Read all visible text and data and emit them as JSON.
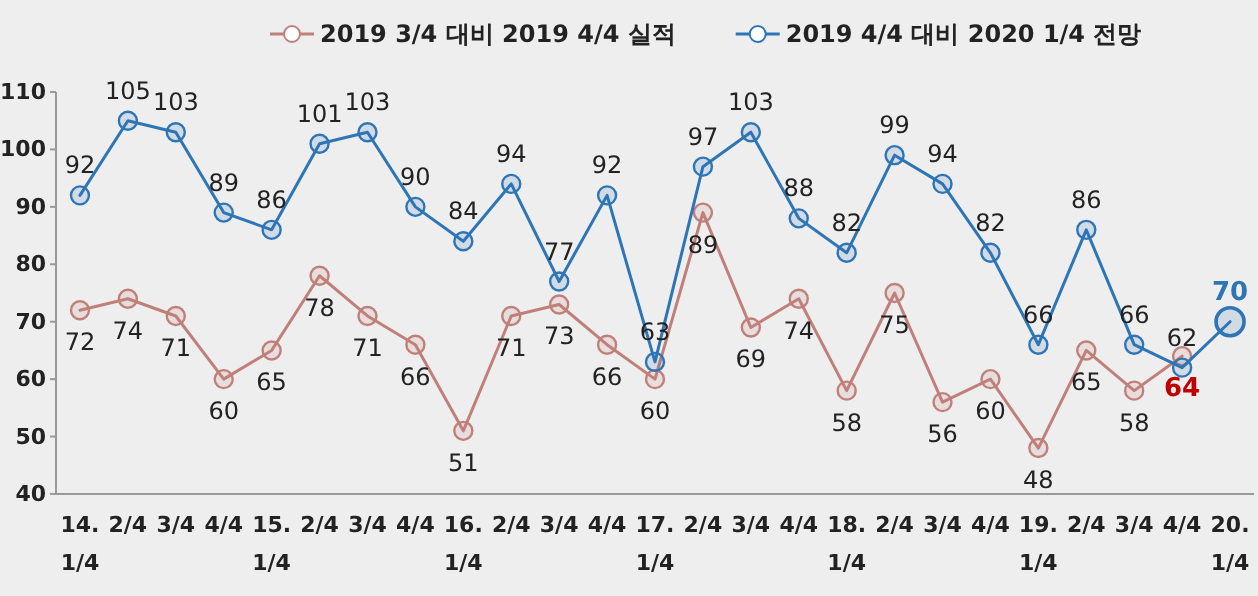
{
  "chart_data": {
    "type": "line",
    "categories": [
      "14.\n1/4",
      "2/4",
      "3/4",
      "4/4",
      "15.\n1/4",
      "2/4",
      "3/4",
      "4/4",
      "16.\n1/4",
      "2/4",
      "3/4",
      "4/4",
      "17.\n1/4",
      "2/4",
      "3/4",
      "4/4",
      "18.\n1/4",
      "2/4",
      "3/4",
      "4/4",
      "19.\n1/4",
      "2/4",
      "3/4",
      "4/4",
      "20.\n1/4"
    ],
    "series": [
      {
        "name": "2019 3/4 대비 2019 4/4 실적",
        "color": "#c0807a",
        "values": [
          72,
          74,
          71,
          60,
          65,
          78,
          71,
          66,
          51,
          71,
          73,
          66,
          60,
          89,
          69,
          74,
          58,
          75,
          56,
          60,
          48,
          65,
          58,
          64,
          null
        ]
      },
      {
        "name": "2019 4/4 대비 2020 1/4 전망",
        "color": "#2e75b6",
        "values": [
          92,
          105,
          103,
          89,
          86,
          101,
          103,
          90,
          84,
          94,
          77,
          92,
          63,
          97,
          103,
          88,
          82,
          99,
          94,
          82,
          66,
          86,
          66,
          62,
          70
        ]
      }
    ],
    "ylim": [
      40,
      110
    ],
    "yticks": [
      40,
      50,
      60,
      70,
      80,
      90,
      100,
      110
    ],
    "grid": false,
    "legend": "top",
    "marker": "circle",
    "line_style": "solid",
    "data_labels": true
  }
}
